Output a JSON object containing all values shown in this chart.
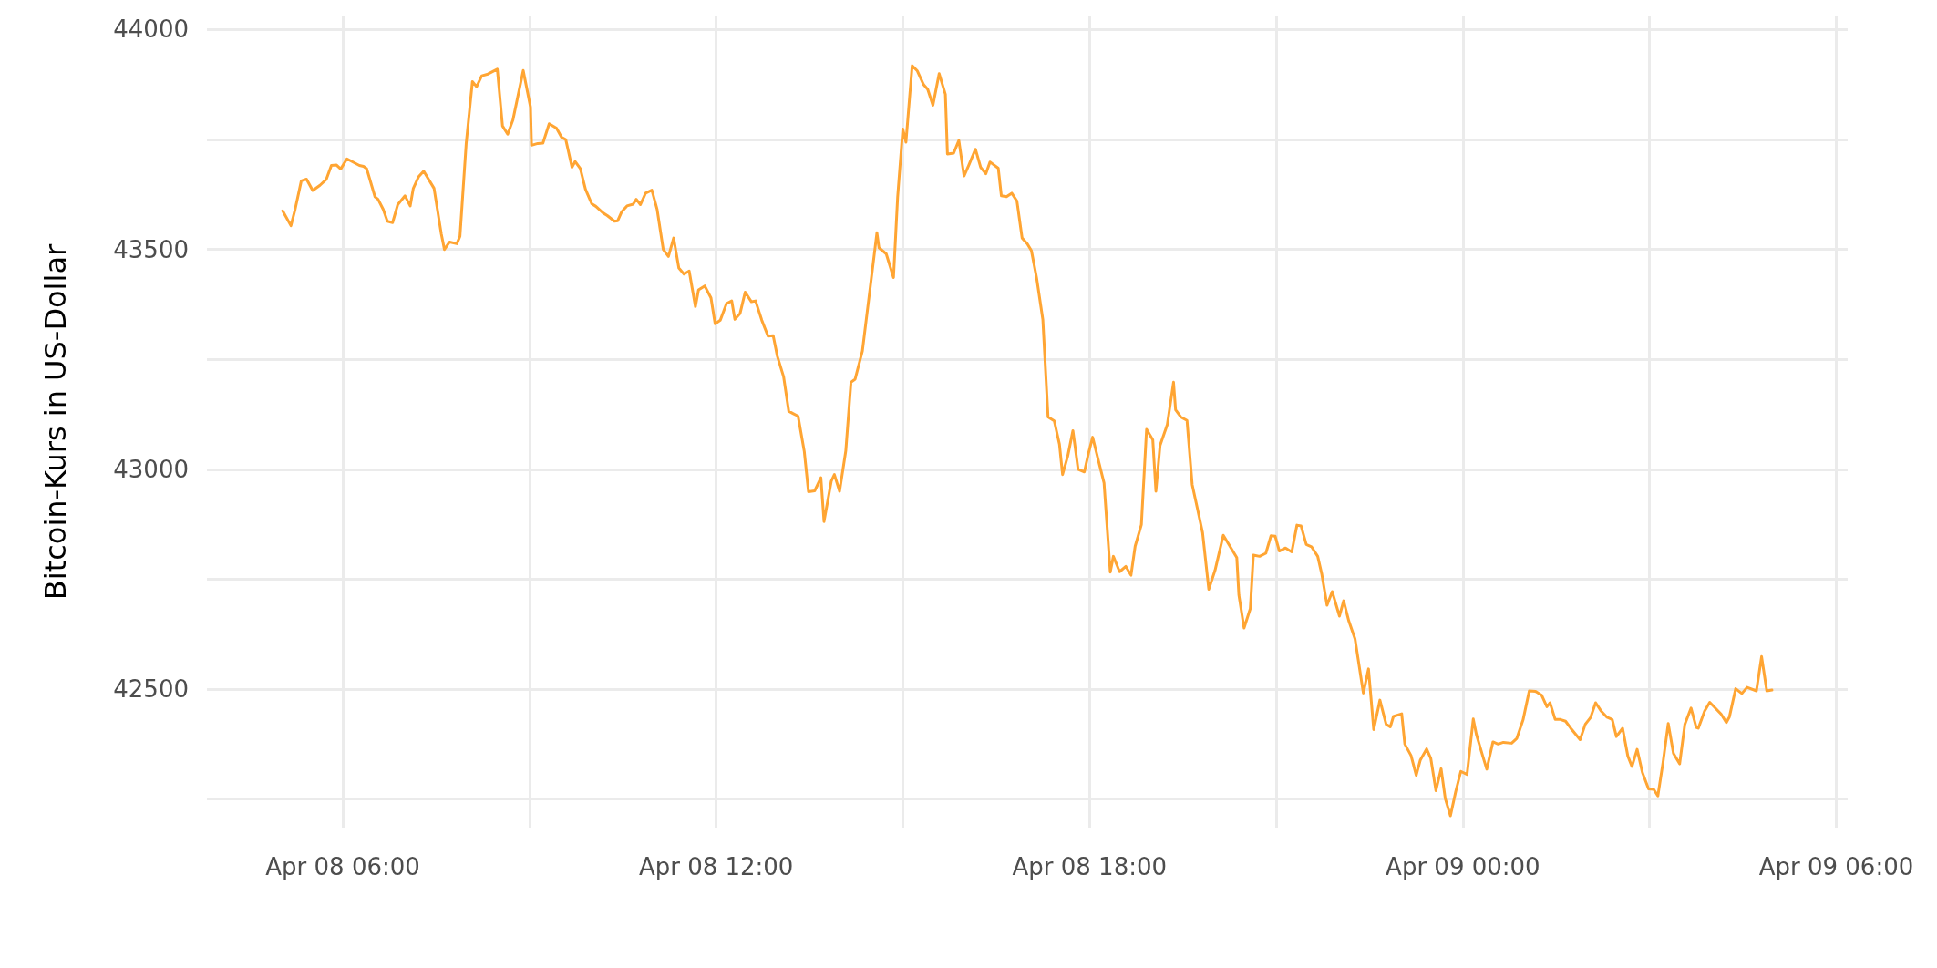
{
  "chart_data": {
    "type": "line",
    "ylabel": "Bitcoin-Kurs in US-Dollar",
    "xlim": [
      "--04-08T03:49",
      "--04-09T06:11"
    ],
    "ylim": [
      42185,
      44030
    ],
    "xticks": [
      {
        "value": "--04-08T06:00",
        "label": "Apr 08 06:00"
      },
      {
        "value": "--04-08T09:00",
        "label": null
      },
      {
        "value": "--04-08T12:00",
        "label": "Apr 08 12:00"
      },
      {
        "value": "--04-08T15:00",
        "label": null
      },
      {
        "value": "--04-08T18:00",
        "label": "Apr 08 18:00"
      },
      {
        "value": "--04-08T21:00",
        "label": null
      },
      {
        "value": "--04-09T00:00",
        "label": "Apr 09 00:00"
      },
      {
        "value": "--04-09T03:00",
        "label": null
      },
      {
        "value": "--04-09T06:00",
        "label": "Apr 09 06:00"
      }
    ],
    "yticks": [
      {
        "value": 42250,
        "label": null
      },
      42500,
      {
        "value": 42750,
        "label": null
      },
      43000,
      {
        "value": 43250,
        "label": null
      },
      43500,
      {
        "value": 43750,
        "label": null
      },
      44000
    ],
    "grid": true,
    "marker": "none",
    "line_style": "solid",
    "series": [
      {
        "color": "#ffa533",
        "x": [
          "--04-08T05:02",
          "--04-08T05:10",
          "--04-08T05:14",
          "--04-08T05:20",
          "--04-08T05:25",
          "--04-08T05:31",
          "--04-08T05:38",
          "--04-08T05:44",
          "--04-08T05:49",
          "--04-08T05:54",
          "--04-08T05:58",
          "--04-08T06:04",
          "--04-08T06:16",
          "--04-08T06:20",
          "--04-08T06:23",
          "--04-08T06:31",
          "--04-08T06:34",
          "--04-08T06:39",
          "--04-08T06:43",
          "--04-08T06:48",
          "--04-08T06:53",
          "--04-08T07:00",
          "--04-08T07:05",
          "--04-08T07:08",
          "--04-08T07:13",
          "--04-08T07:18",
          "--04-08T07:28",
          "--04-08T07:35",
          "--04-08T07:38",
          "--04-08T07:43",
          "--04-08T07:50",
          "--04-08T07:53",
          "--04-08T07:59",
          "--04-08T08:05",
          "--04-08T08:09",
          "--04-08T08:14",
          "--04-08T08:20",
          "--04-08T08:29",
          "--04-08T08:34",
          "--04-08T08:39",
          "--04-08T08:44",
          "--04-08T08:54",
          "--04-08T09:01",
          "--04-08T09:02",
          "--04-08T09:08",
          "--04-08T09:13",
          "--04-08T09:19",
          "--04-08T09:26",
          "--04-08T09:31",
          "--04-08T09:35",
          "--04-08T09:41",
          "--04-08T09:44",
          "--04-08T09:49",
          "--04-08T09:54",
          "--04-08T10:00",
          "--04-08T10:04",
          "--04-08T10:11",
          "--04-08T10:15",
          "--04-08T10:22",
          "--04-08T10:25",
          "--04-08T10:29",
          "--04-08T10:34",
          "--04-08T10:40",
          "--04-08T10:43",
          "--04-08T10:47",
          "--04-08T10:52",
          "--04-08T10:58",
          "--04-08T11:03",
          "--04-08T11:09",
          "--04-08T11:14",
          "--04-08T11:19",
          "--04-08T11:24",
          "--04-08T11:29",
          "--04-08T11:34",
          "--04-08T11:40",
          "--04-08T11:43",
          "--04-08T11:49",
          "--04-08T11:55",
          "--04-08T11:59",
          "--04-08T12:04",
          "--04-08T12:10",
          "--04-08T12:15",
          "--04-08T12:18",
          "--04-08T12:23",
          "--04-08T12:28",
          "--04-08T12:34",
          "--04-08T12:38",
          "--04-08T12:44",
          "--04-08T12:50",
          "--04-08T12:55",
          "--04-08T12:59",
          "--04-08T13:05",
          "--04-08T13:10",
          "--04-08T13:14",
          "--04-08T13:19",
          "--04-08T13:25",
          "--04-08T13:29",
          "--04-08T13:35",
          "--04-08T13:41",
          "--04-08T13:44",
          "--04-08T13:51",
          "--04-08T13:54",
          "--04-08T13:59",
          "--04-08T14:05",
          "--04-08T14:10",
          "--04-08T14:14",
          "--04-08T14:21",
          "--04-08T14:35",
          "--04-08T14:37",
          "--04-08T14:44",
          "--04-08T14:51",
          "--04-08T14:55",
          "--04-08T15:00",
          "--04-08T15:03",
          "--04-08T15:09",
          "--04-08T15:14",
          "--04-08T15:20",
          "--04-08T15:24",
          "--04-08T15:29",
          "--04-08T15:35",
          "--04-08T15:41",
          "--04-08T15:43",
          "--04-08T15:49",
          "--04-08T15:54",
          "--04-08T15:59",
          "--04-08T16:04",
          "--04-08T16:10",
          "--04-08T16:15",
          "--04-08T16:20",
          "--04-08T16:24",
          "--04-08T16:32",
          "--04-08T16:35",
          "--04-08T16:40",
          "--04-08T16:45",
          "--04-08T16:50",
          "--04-08T16:55",
          "--04-08T17:00",
          "--04-08T17:04",
          "--04-08T17:09",
          "--04-08T17:15",
          "--04-08T17:20",
          "--04-08T17:26",
          "--04-08T17:31",
          "--04-08T17:34",
          "--04-08T17:39",
          "--04-08T17:44",
          "--04-08T17:49",
          "--04-08T17:55",
          "--04-08T17:59",
          "--04-08T18:03",
          "--04-08T18:09",
          "--04-08T18:14",
          "--04-08T18:20",
          "--04-08T18:23",
          "--04-08T18:29",
          "--04-08T18:35",
          "--04-08T18:40",
          "--04-08T18:44",
          "--04-08T18:50",
          "--04-08T18:55",
          "--04-08T19:01",
          "--04-08T19:04",
          "--04-08T19:08",
          "--04-08T19:15",
          "--04-08T19:21",
          "--04-08T19:23",
          "--04-08T19:28",
          "--04-08T19:34",
          "--04-08T19:39",
          "--04-08T19:44",
          "--04-08T19:49",
          "--04-08T19:55",
          "--04-08T20:01",
          "--04-08T20:09",
          "--04-08T20:22",
          "--04-08T20:24",
          "--04-08T20:29",
          "--04-08T20:35",
          "--04-08T20:38",
          "--04-08T20:44",
          "--04-08T20:50",
          "--04-08T20:55",
          "--04-08T20:59",
          "--04-08T21:03",
          "--04-08T21:09",
          "--04-08T21:15",
          "--04-08T21:20",
          "--04-08T21:24",
          "--04-08T21:29",
          "--04-08T21:34",
          "--04-08T21:40",
          "--04-08T21:44",
          "--04-08T21:49",
          "--04-08T21:54",
          "--04-08T22:01",
          "--04-08T22:05",
          "--04-08T22:10",
          "--04-08T22:16",
          "--04-08T22:24",
          "--04-08T22:29",
          "--04-08T22:34",
          "--04-08T22:40",
          "--04-08T22:46",
          "--04-08T22:50",
          "--04-08T22:53",
          "--04-08T23:01",
          "--04-08T23:04",
          "--04-08T23:10",
          "--04-08T23:15",
          "--04-08T23:19",
          "--04-08T23:25",
          "--04-08T23:29",
          "--04-08T23:34",
          "--04-08T23:39",
          "--04-08T23:43",
          "--04-08T23:48",
          "--04-08T23:53",
          "--04-08T23:58",
          "--04-09T00:04",
          "--04-09T00:10",
          "--04-09T00:13",
          "--04-09T00:19",
          "--04-09T00:23",
          "--04-09T00:29",
          "--04-09T00:34",
          "--04-09T00:39",
          "--04-09T00:47",
          "--04-09T00:52",
          "--04-09T00:58",
          "--04-09T01:04",
          "--04-09T01:10",
          "--04-09T01:16",
          "--04-09T01:21",
          "--04-09T01:24",
          "--04-09T01:29",
          "--04-09T01:34",
          "--04-09T01:39",
          "--04-09T01:44",
          "--04-09T01:53",
          "--04-09T01:58",
          "--04-09T02:03",
          "--04-09T02:08",
          "--04-09T02:13",
          "--04-09T02:19",
          "--04-09T02:24",
          "--04-09T02:28",
          "--04-09T02:34",
          "--04-09T02:39",
          "--04-09T02:43",
          "--04-09T02:48",
          "--04-09T02:53",
          "--04-09T02:59",
          "--04-09T03:04",
          "--04-09T03:08",
          "--04-09T03:13",
          "--04-09T03:18",
          "--04-09T03:23",
          "--04-09T03:29",
          "--04-09T03:34",
          "--04-09T03:40",
          "--04-09T03:45",
          "--04-09T03:47",
          "--04-09T03:53",
          "--04-09T03:58",
          "--04-09T04:09",
          "--04-09T04:14",
          "--04-09T04:17",
          "--04-09T04:23",
          "--04-09T04:29",
          "--04-09T04:34",
          "--04-09T04:43",
          "--04-09T04:48",
          "--04-09T04:53",
          "--04-09T04:58"
        ],
        "values": [
          43588,
          43554,
          43591,
          43656,
          43660,
          43634,
          43646,
          43659,
          43691,
          43692,
          43683,
          43706,
          43691,
          43689,
          43684,
          43620,
          43614,
          43591,
          43564,
          43561,
          43602,
          43622,
          43599,
          43639,
          43665,
          43678,
          43639,
          43535,
          43500,
          43517,
          43513,
          43530,
          43741,
          43882,
          43870,
          43895,
          43899,
          43910,
          43781,
          43762,
          43794,
          43907,
          43824,
          43737,
          43741,
          43742,
          43786,
          43776,
          43755,
          43750,
          43687,
          43700,
          43684,
          43637,
          43604,
          43598,
          43583,
          43577,
          43564,
          43565,
          43586,
          43599,
          43603,
          43614,
          43602,
          43628,
          43635,
          43592,
          43500,
          43484,
          43526,
          43458,
          43444,
          43451,
          43370,
          43408,
          43417,
          43390,
          43331,
          43339,
          43377,
          43383,
          43341,
          43354,
          43403,
          43381,
          43383,
          43339,
          43303,
          43304,
          43257,
          43211,
          43132,
          43127,
          43121,
          43040,
          42949,
          42951,
          42981,
          42881,
          42973,
          42988,
          42950,
          43042,
          43198,
          43205,
          43269,
          43538,
          43504,
          43490,
          43436,
          43620,
          43774,
          43744,
          43918,
          43906,
          43875,
          43864,
          43828,
          43900,
          43853,
          43717,
          43719,
          43748,
          43667,
          43694,
          43728,
          43687,
          43672,
          43699,
          43685,
          43622,
          43620,
          43628,
          43610,
          43526,
          43513,
          43497,
          43435,
          43340,
          43119,
          43110,
          43057,
          42988,
          43030,
          43088,
          43000,
          42994,
          43036,
          43073,
          43016,
          42969,
          42766,
          42802,
          42767,
          42779,
          42759,
          42825,
          42874,
          43091,
          43067,
          42950,
          43054,
          43102,
          43198,
          43135,
          43119,
          43111,
          42965,
          42911,
          42856,
          42727,
          42770,
          42850,
          42799,
          42714,
          42639,
          42683,
          42805,
          42802,
          42809,
          42849,
          42848,
          42814,
          42821,
          42812,
          42873,
          42871,
          42829,
          42824,
          42802,
          42761,
          42691,
          42722,
          42666,
          42701,
          42655,
          42614,
          42491,
          42546,
          42408,
          42475,
          42420,
          42414,
          42438,
          42444,
          42375,
          42349,
          42304,
          42339,
          42364,
          42343,
          42269,
          42319,
          42251,
          42212,
          42266,
          42313,
          42306,
          42432,
          42397,
          42349,
          42318,
          42380,
          42375,
          42379,
          42377,
          42388,
          42430,
          42496,
          42495,
          42486,
          42460,
          42469,
          42431,
          42431,
          42427,
          42411,
          42385,
          42420,
          42435,
          42469,
          42451,
          42436,
          42431,
          42392,
          42411,
          42348,
          42324,
          42363,
          42311,
          42273,
          42272,
          42257,
          42334,
          42422,
          42354,
          42330,
          42420,
          42457,
          42413,
          42411,
          42450,
          42470,
          42443,
          42424,
          42437,
          42501,
          42490,
          42504,
          42496,
          42574,
          42496,
          42498
        ]
      }
    ]
  }
}
